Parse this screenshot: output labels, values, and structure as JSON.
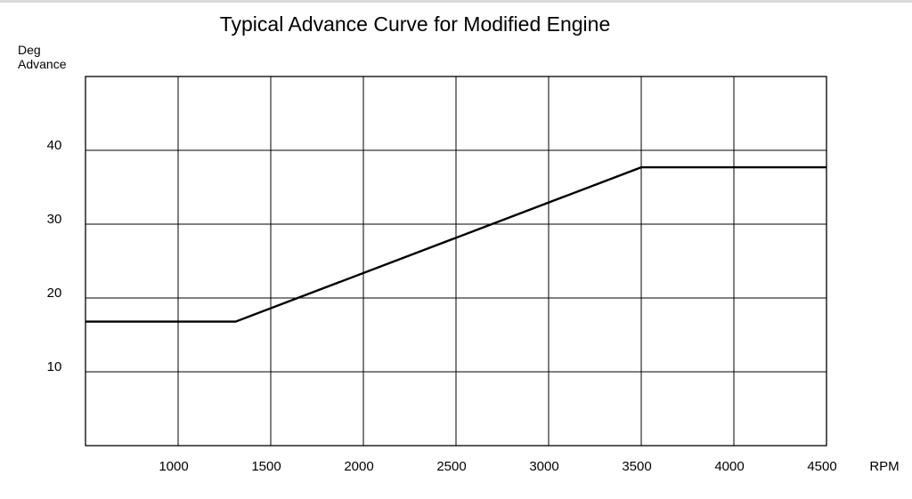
{
  "chart_data": {
    "type": "line",
    "title": "Typical Advance Curve for Modified Engine",
    "ylabel_lines": [
      "Deg",
      "Advance"
    ],
    "xlabel": "RPM",
    "xlim": [
      500,
      4500
    ],
    "ylim": [
      0,
      50
    ],
    "x_ticks": [
      1000,
      1500,
      2000,
      2500,
      3000,
      3500,
      4000,
      4500
    ],
    "x_tick_labels": [
      "1000",
      "1500",
      "2000",
      "2500",
      "3000",
      "3500",
      "4000",
      "4500"
    ],
    "y_ticks": [
      10,
      20,
      30,
      40
    ],
    "y_tick_labels": [
      "10",
      "20",
      "30",
      "40"
    ],
    "grid": true,
    "legend": "none",
    "series": [
      {
        "x": [
          500,
          1310,
          3500,
          4500
        ],
        "y": [
          16.8,
          16.8,
          37.7,
          37.7
        ]
      }
    ]
  }
}
